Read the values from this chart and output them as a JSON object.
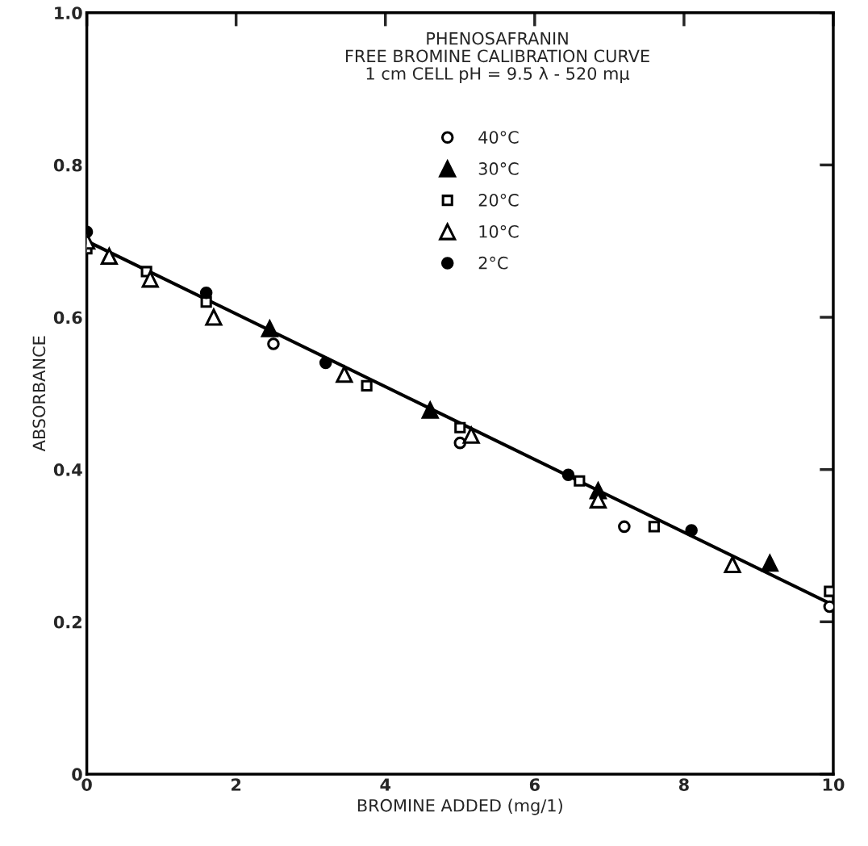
{
  "chart_data": {
    "type": "scatter",
    "title": "PHENOSAFRANIN\nFREE BROMINE CALIBRATION CURVE\n1 cm CELL pH = 9.5 λ - 520 mμ",
    "xlabel": "BROMINE ADDED (mg/1)",
    "ylabel": "ABSORBANCE",
    "xlim": [
      0,
      10
    ],
    "ylim": [
      0,
      1.0
    ],
    "xticks": [
      0,
      2,
      4,
      6,
      8,
      10
    ],
    "yticks": [
      0,
      {
        "value": 0.2,
        "label": "0.2"
      },
      {
        "value": 0.4,
        "label": "0.4"
      },
      {
        "value": 0.6,
        "label": "0.6"
      },
      {
        "value": 0.8,
        "label": "0.8"
      },
      {
        "value": 1.0,
        "label": "1.0"
      }
    ],
    "grid": false,
    "legend": "top",
    "series": [
      {
        "name": "40°C",
        "marker": "circle",
        "color": "#ffffff",
        "x": [
          2.5,
          5.0,
          7.2,
          9.95
        ],
        "values": [
          0.565,
          0.435,
          0.325,
          0.22
        ]
      },
      {
        "name": "30°C",
        "marker": "triangle",
        "color": "#000000",
        "x": [
          2.45,
          4.6,
          6.85,
          9.15
        ],
        "values": [
          0.585,
          0.478,
          0.372,
          0.277
        ]
      },
      {
        "name": "20°C",
        "marker": "square",
        "color": "#ffffff",
        "x": [
          0,
          0.8,
          1.6,
          3.75,
          5.0,
          6.6,
          7.6,
          9.95
        ],
        "values": [
          0.69,
          0.66,
          0.62,
          0.51,
          0.455,
          0.385,
          0.325,
          0.24
        ]
      },
      {
        "name": "10°C",
        "marker": "triangle",
        "color": "#ffffff",
        "x": [
          0,
          0.3,
          0.85,
          1.7,
          3.45,
          5.15,
          6.85,
          8.65
        ],
        "values": [
          0.7,
          0.68,
          0.65,
          0.6,
          0.525,
          0.445,
          0.36,
          0.275
        ]
      },
      {
        "name": "2°C",
        "marker": "circle",
        "color": "#000000",
        "x": [
          0,
          1.6,
          3.2,
          6.45,
          8.1
        ],
        "values": [
          0.712,
          0.632,
          0.54,
          0.393,
          0.32
        ]
      },
      {
        "type": "line",
        "color": "#000000",
        "line_style": "solid",
        "marker": "none",
        "x": [
          0,
          10
        ],
        "values": [
          0.7,
          0.222
        ]
      }
    ]
  }
}
